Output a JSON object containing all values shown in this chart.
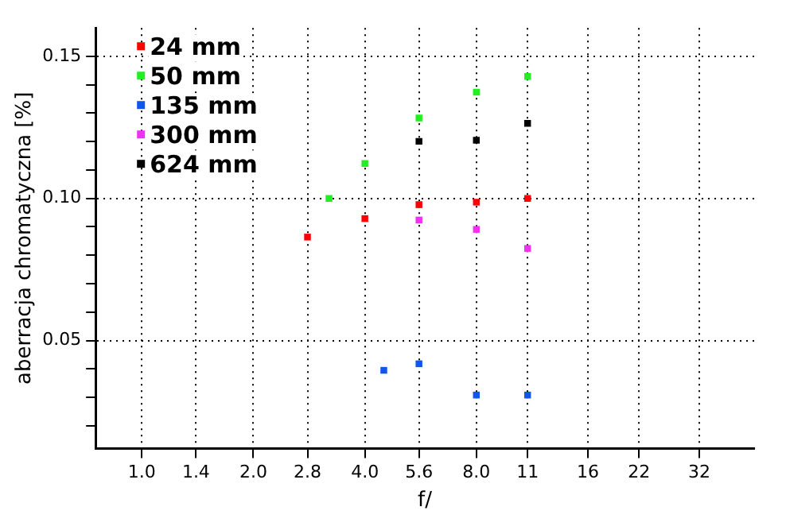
{
  "chart_data": {
    "type": "scatter",
    "xlabel": "f/",
    "ylabel": "aberracja chromatyczna [%]",
    "log": "x",
    "marker": "square",
    "grid": true,
    "legend": "top left",
    "xlim": [
      0.75,
      45
    ],
    "xticks": [
      {
        "value": 1,
        "label": "1.0"
      },
      1.4,
      {
        "value": 2,
        "label": "2.0"
      },
      2.8,
      {
        "value": 4,
        "label": "4.0"
      },
      5.6,
      {
        "value": 8,
        "label": "8.0"
      },
      11,
      16,
      22,
      32
    ],
    "ylim": [
      0.012,
      0.16
    ],
    "yticks": [
      {
        "value": 0.02,
        "label": null
      },
      {
        "value": 0.03,
        "label": null
      },
      {
        "value": 0.04,
        "label": null
      },
      0.05,
      {
        "value": 0.06,
        "label": null
      },
      {
        "value": 0.07,
        "label": null
      },
      {
        "value": 0.08,
        "label": null
      },
      {
        "value": 0.09,
        "label": null
      },
      {
        "value": 0.1,
        "label": "0.10"
      },
      {
        "value": 0.11,
        "label": null
      },
      {
        "value": 0.12,
        "label": null
      },
      {
        "value": 0.13,
        "label": null
      },
      {
        "value": 0.14,
        "label": null
      },
      0.15
    ],
    "series": [
      {
        "name": "24 mm",
        "color": "#ff0000",
        "x": [
          2.8,
          4,
          5.6,
          8,
          11
        ],
        "values": [
          0.0864,
          0.0929,
          0.0978,
          0.0987,
          0.1
        ]
      },
      {
        "name": "50 mm",
        "color": "#22ee22",
        "x": [
          3.2,
          4,
          5.6,
          8,
          11
        ],
        "values": [
          0.1,
          0.1123,
          0.1283,
          0.1374,
          0.1429
        ]
      },
      {
        "name": "135 mm",
        "color": "#1155ee",
        "x": [
          4.5,
          5.6,
          8,
          11
        ],
        "values": [
          0.0395,
          0.0418,
          0.0308,
          0.0308
        ]
      },
      {
        "name": "300 mm",
        "color": "#ee33ee",
        "x": [
          5.6,
          8,
          11
        ],
        "values": [
          0.0924,
          0.0891,
          0.0824
        ]
      },
      {
        "name": "624 mm",
        "color": "#000000",
        "x": [
          5.6,
          8,
          11
        ],
        "values": [
          0.1201,
          0.1205,
          0.1264
        ]
      }
    ]
  }
}
